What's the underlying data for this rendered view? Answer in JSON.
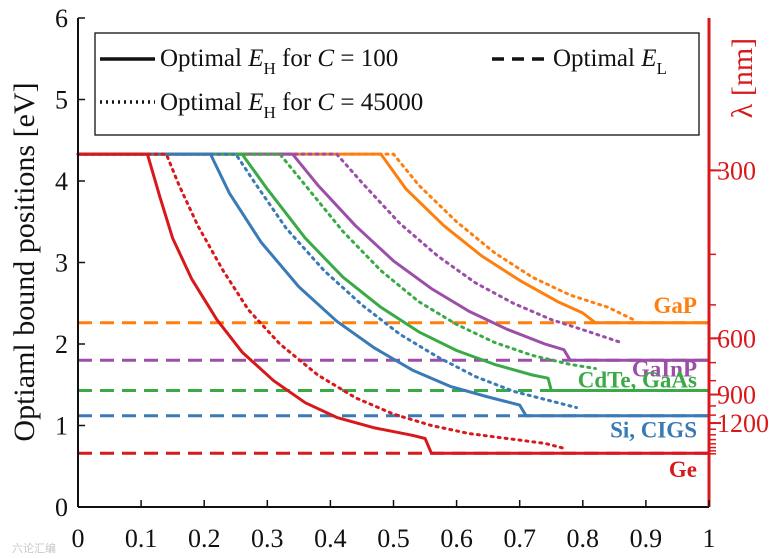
{
  "chart_data": {
    "type": "line",
    "ylabel": "Optiaml bound positions [eV]",
    "right_ylabel": "λ [nm]",
    "xlim": [
      0,
      1
    ],
    "ylim": [
      0,
      6
    ],
    "x_ticks": [
      "0",
      "0.1",
      "0.2",
      "0.3",
      "0.4",
      "0.5",
      "0.6",
      "0.7",
      "0.8",
      "0.9",
      "1"
    ],
    "y_ticks": [
      "0",
      "1",
      "2",
      "3",
      "4",
      "5",
      "6"
    ],
    "right_ticks": [
      {
        "label": "300",
        "ev": 4.13
      },
      {
        "label": "600",
        "ev": 2.07
      },
      {
        "label": "900",
        "ev": 1.38
      },
      {
        "label": "1200",
        "ev": 1.03
      }
    ],
    "legend": {
      "solid": {
        "prefix": "Optimal ",
        "var": "E",
        "sub": "H",
        "mid": " for ",
        "cvar": "C",
        "eq": " = 100"
      },
      "dotted": {
        "prefix": "Optimal ",
        "var": "E",
        "sub": "H",
        "mid": " for ",
        "cvar": "C",
        "eq": " = 45000"
      },
      "dashed": {
        "prefix": "Optimal ",
        "var": "E",
        "sub": "L"
      }
    },
    "materials": [
      {
        "name": "GaP",
        "color": "#ff7f0e",
        "el": 2.26,
        "solid": [
          [
            0,
            4.33
          ],
          [
            0.48,
            4.33
          ],
          [
            0.52,
            3.9
          ],
          [
            0.58,
            3.45
          ],
          [
            0.64,
            3.08
          ],
          [
            0.7,
            2.78
          ],
          [
            0.76,
            2.52
          ],
          [
            0.8,
            2.38
          ],
          [
            0.82,
            2.26
          ],
          [
            1.0,
            2.26
          ]
        ],
        "dotted": [
          [
            0,
            4.33
          ],
          [
            0.5,
            4.33
          ],
          [
            0.54,
            3.95
          ],
          [
            0.6,
            3.5
          ],
          [
            0.66,
            3.12
          ],
          [
            0.72,
            2.82
          ],
          [
            0.78,
            2.6
          ],
          [
            0.84,
            2.45
          ],
          [
            0.88,
            2.3
          ]
        ]
      },
      {
        "name": "GaInP",
        "color": "#9b4fa8",
        "el": 1.8,
        "solid": [
          [
            0,
            4.33
          ],
          [
            0.34,
            4.33
          ],
          [
            0.38,
            3.95
          ],
          [
            0.44,
            3.45
          ],
          [
            0.5,
            3.02
          ],
          [
            0.56,
            2.68
          ],
          [
            0.62,
            2.4
          ],
          [
            0.68,
            2.18
          ],
          [
            0.74,
            2.0
          ],
          [
            0.77,
            1.93
          ],
          [
            0.78,
            1.8
          ],
          [
            1.0,
            1.8
          ]
        ],
        "dotted": [
          [
            0,
            4.33
          ],
          [
            0.41,
            4.33
          ],
          [
            0.45,
            3.98
          ],
          [
            0.51,
            3.48
          ],
          [
            0.57,
            3.08
          ],
          [
            0.63,
            2.75
          ],
          [
            0.69,
            2.5
          ],
          [
            0.75,
            2.3
          ],
          [
            0.81,
            2.15
          ],
          [
            0.86,
            2.02
          ]
        ]
      },
      {
        "name": "CdTe, GaAs",
        "color": "#3aaa46",
        "el": 1.43,
        "solid": [
          [
            0,
            4.33
          ],
          [
            0.26,
            4.33
          ],
          [
            0.3,
            3.9
          ],
          [
            0.36,
            3.3
          ],
          [
            0.42,
            2.82
          ],
          [
            0.48,
            2.45
          ],
          [
            0.54,
            2.15
          ],
          [
            0.6,
            1.92
          ],
          [
            0.66,
            1.75
          ],
          [
            0.72,
            1.62
          ],
          [
            0.745,
            1.58
          ],
          [
            0.75,
            1.43
          ],
          [
            1.0,
            1.43
          ]
        ],
        "dotted": [
          [
            0,
            4.33
          ],
          [
            0.32,
            4.33
          ],
          [
            0.36,
            3.95
          ],
          [
            0.42,
            3.38
          ],
          [
            0.48,
            2.9
          ],
          [
            0.54,
            2.52
          ],
          [
            0.6,
            2.24
          ],
          [
            0.66,
            2.02
          ],
          [
            0.72,
            1.86
          ],
          [
            0.78,
            1.75
          ],
          [
            0.82,
            1.7
          ]
        ]
      },
      {
        "name": "Si, CIGS",
        "color": "#3a7ab5",
        "el": 1.12,
        "solid": [
          [
            0,
            4.33
          ],
          [
            0.21,
            4.33
          ],
          [
            0.24,
            3.85
          ],
          [
            0.29,
            3.25
          ],
          [
            0.35,
            2.7
          ],
          [
            0.41,
            2.28
          ],
          [
            0.47,
            1.95
          ],
          [
            0.53,
            1.68
          ],
          [
            0.59,
            1.48
          ],
          [
            0.65,
            1.35
          ],
          [
            0.7,
            1.25
          ],
          [
            0.71,
            1.12
          ],
          [
            1.0,
            1.12
          ]
        ],
        "dotted": [
          [
            0,
            4.33
          ],
          [
            0.25,
            4.33
          ],
          [
            0.28,
            3.98
          ],
          [
            0.33,
            3.42
          ],
          [
            0.39,
            2.9
          ],
          [
            0.45,
            2.48
          ],
          [
            0.51,
            2.12
          ],
          [
            0.57,
            1.84
          ],
          [
            0.63,
            1.6
          ],
          [
            0.69,
            1.42
          ],
          [
            0.75,
            1.3
          ],
          [
            0.79,
            1.22
          ]
        ]
      },
      {
        "name": "Ge",
        "color": "#d7191c",
        "el": 0.66,
        "solid": [
          [
            0,
            4.33
          ],
          [
            0.11,
            4.33
          ],
          [
            0.13,
            3.8
          ],
          [
            0.15,
            3.3
          ],
          [
            0.18,
            2.8
          ],
          [
            0.22,
            2.3
          ],
          [
            0.26,
            1.9
          ],
          [
            0.31,
            1.55
          ],
          [
            0.36,
            1.28
          ],
          [
            0.41,
            1.1
          ],
          [
            0.47,
            0.97
          ],
          [
            0.53,
            0.88
          ],
          [
            0.55,
            0.84
          ],
          [
            0.56,
            0.66
          ],
          [
            1.0,
            0.66
          ]
        ],
        "dotted": [
          [
            0,
            4.33
          ],
          [
            0.14,
            4.33
          ],
          [
            0.16,
            3.95
          ],
          [
            0.19,
            3.45
          ],
          [
            0.23,
            2.9
          ],
          [
            0.27,
            2.42
          ],
          [
            0.32,
            2.0
          ],
          [
            0.38,
            1.62
          ],
          [
            0.44,
            1.34
          ],
          [
            0.5,
            1.14
          ],
          [
            0.56,
            1.0
          ],
          [
            0.62,
            0.9
          ],
          [
            0.68,
            0.84
          ],
          [
            0.74,
            0.78
          ],
          [
            0.77,
            0.72
          ]
        ]
      }
    ]
  },
  "watermark": "六论汇编"
}
